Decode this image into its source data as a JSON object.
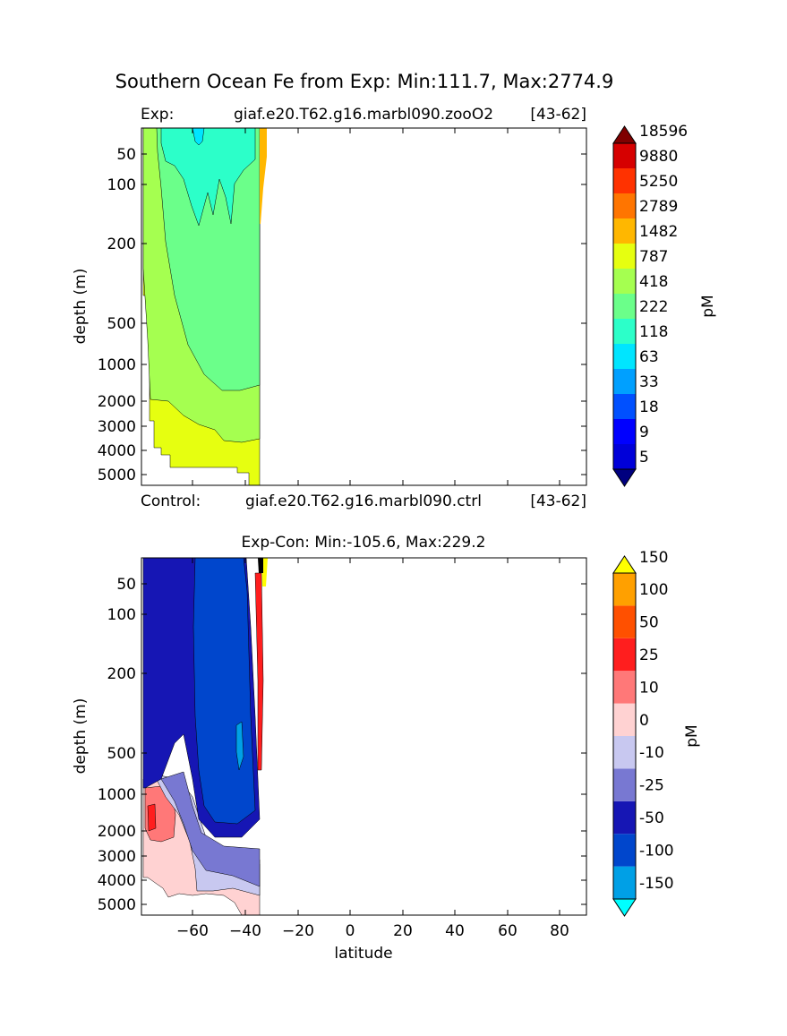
{
  "figure": {
    "title": "Southern Ocean Fe from Exp: Min:111.7, Max:2774.9"
  },
  "top_panel": {
    "left_label": "Exp:",
    "case_name": "giaf.e20.T62.g16.marbl090.zooO2",
    "right_label": "[43-62]",
    "bottom_left_label": "Control:",
    "bottom_case_name": "giaf.e20.T62.g16.marbl090.ctrl",
    "bottom_right_label": "[43-62]"
  },
  "bottom_panel": {
    "title": "Exp-Con: Min:-105.6, Max:229.2"
  },
  "chart_data": [
    {
      "type": "heatmap",
      "title": "Southern Ocean Fe from Exp: Min:111.7, Max:2774.9",
      "xlabel": "",
      "ylabel": "depth (m)",
      "xlim": [
        -80,
        90
      ],
      "ylim": [
        5500,
        0
      ],
      "yscale": "log-depth",
      "yticks": [
        "50",
        "100",
        "200",
        "500",
        "1000",
        "2000",
        "3000",
        "4000",
        "5000"
      ],
      "data_extent_lat": [
        -80,
        -33
      ],
      "colorbar": {
        "label": "pM",
        "levels": [
          "5",
          "9",
          "18",
          "33",
          "63",
          "118",
          "222",
          "418",
          "787",
          "1482",
          "2789",
          "5250",
          "9880",
          "18596"
        ],
        "colors": [
          "#00007f",
          "#0000d9",
          "#0000ff",
          "#0050ff",
          "#00a0ff",
          "#00e5ff",
          "#2cffc9",
          "#6bff8a",
          "#a5ff50",
          "#e6ff10",
          "#ffb700",
          "#ff7500",
          "#ff3200",
          "#d60000",
          "#7f0000"
        ],
        "extend": "both"
      },
      "min": 111.7,
      "max": 2774.9
    },
    {
      "type": "heatmap",
      "title": "Exp-Con: Min:-105.6, Max:229.2",
      "xlabel": "latitude",
      "ylabel": "depth (m)",
      "xlim": [
        -80,
        90
      ],
      "xticks": [
        "−60",
        "−40",
        "−20",
        "0",
        "20",
        "40",
        "60",
        "80"
      ],
      "ylim": [
        5500,
        0
      ],
      "yscale": "log-depth",
      "yticks": [
        "50",
        "100",
        "200",
        "500",
        "1000",
        "2000",
        "3000",
        "4000",
        "5000"
      ],
      "data_extent_lat": [
        -80,
        -33
      ],
      "colorbar": {
        "label": "pM",
        "levels": [
          "-150",
          "-100",
          "-50",
          "-25",
          "-10",
          "0",
          "10",
          "25",
          "50",
          "100",
          "150"
        ],
        "colors": [
          "#00ffff",
          "#00a0e6",
          "#0046cc",
          "#1616b4",
          "#7878d2",
          "#c8c8f0",
          "#ffd2d2",
          "#ff7878",
          "#ff1e1e",
          "#ff5000",
          "#ffa000",
          "#ffff00"
        ],
        "extend": "both"
      },
      "min": -105.6,
      "max": 229.2
    }
  ]
}
